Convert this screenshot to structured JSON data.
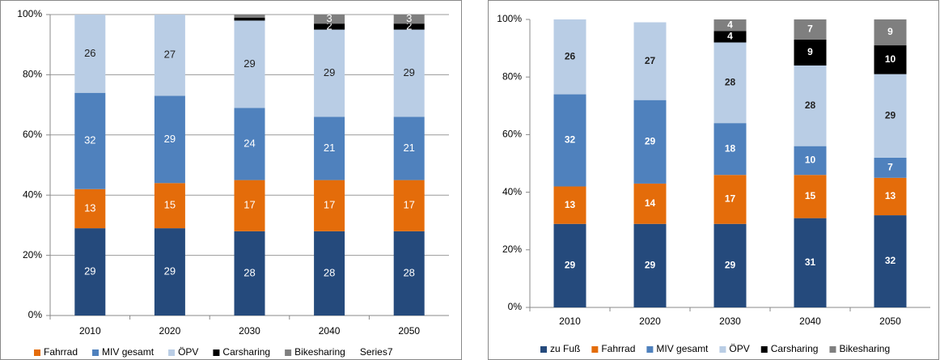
{
  "chart_data": [
    {
      "type": "stacked_bar",
      "categories": [
        "2010",
        "2020",
        "2030",
        "2040",
        "2050"
      ],
      "ylim": [
        0,
        100
      ],
      "yticks": [
        {
          "value": 0,
          "label": "0%"
        },
        {
          "value": 20,
          "label": "20%"
        },
        {
          "value": 40,
          "label": "40%"
        },
        {
          "value": 60,
          "label": "60%"
        },
        {
          "value": 80,
          "label": "80%"
        },
        {
          "value": 100,
          "label": "100%"
        }
      ],
      "grid": true,
      "legend": "bottom",
      "series": [
        {
          "name": null,
          "color": "#254a7c",
          "values": [
            29,
            29,
            28,
            28,
            28
          ]
        },
        {
          "name": "Fahrrad",
          "color": "#e46c0a",
          "values": [
            13,
            15,
            17,
            17,
            17
          ]
        },
        {
          "name": "MIV gesamt",
          "color": "#4f81bd",
          "values": [
            32,
            29,
            24,
            21,
            21
          ]
        },
        {
          "name": "ÖPV",
          "color": "#b9cde5",
          "values": [
            26,
            27,
            29,
            29,
            29
          ]
        },
        {
          "name": "Carsharing",
          "color": "#000000",
          "values": [
            null,
            null,
            1,
            2,
            2
          ],
          "value_labels": [
            null,
            null,
            null,
            "2",
            "2"
          ]
        },
        {
          "name": "Bikesharing",
          "color": "#7f7f7f",
          "values": [
            null,
            null,
            1,
            3,
            3
          ],
          "value_labels": [
            null,
            null,
            null,
            "3",
            "3"
          ]
        },
        {
          "name": "Series7",
          "values": [
            null,
            null,
            null,
            null,
            null
          ]
        }
      ]
    },
    {
      "type": "stacked_bar",
      "categories": [
        "2010",
        "2020",
        "2030",
        "2040",
        "2050"
      ],
      "ylim": [
        0,
        100
      ],
      "yticks": [
        {
          "value": 0,
          "label": "0%"
        },
        {
          "value": 20,
          "label": "20%"
        },
        {
          "value": 40,
          "label": "40%"
        },
        {
          "value": 60,
          "label": "60%"
        },
        {
          "value": 80,
          "label": "80%"
        },
        {
          "value": 100,
          "label": "100%"
        }
      ],
      "grid": false,
      "legend": "bottom",
      "series": [
        {
          "name": "zu Fuß",
          "color": "#254a7c",
          "values": [
            29,
            29,
            29,
            31,
            32
          ]
        },
        {
          "name": "Fahrrad",
          "color": "#e46c0a",
          "values": [
            13,
            14,
            17,
            15,
            13
          ]
        },
        {
          "name": "MIV gesamt",
          "color": "#4f81bd",
          "values": [
            32,
            29,
            18,
            10,
            7
          ]
        },
        {
          "name": "ÖPV",
          "color": "#b9cde5",
          "values": [
            26,
            27,
            28,
            28,
            29
          ]
        },
        {
          "name": "Carsharing",
          "color": "#000000",
          "values": [
            null,
            null,
            4,
            9,
            10
          ]
        },
        {
          "name": "Bikesharing",
          "color": "#7f7f7f",
          "values": [
            null,
            null,
            4,
            7,
            9
          ]
        }
      ]
    }
  ]
}
